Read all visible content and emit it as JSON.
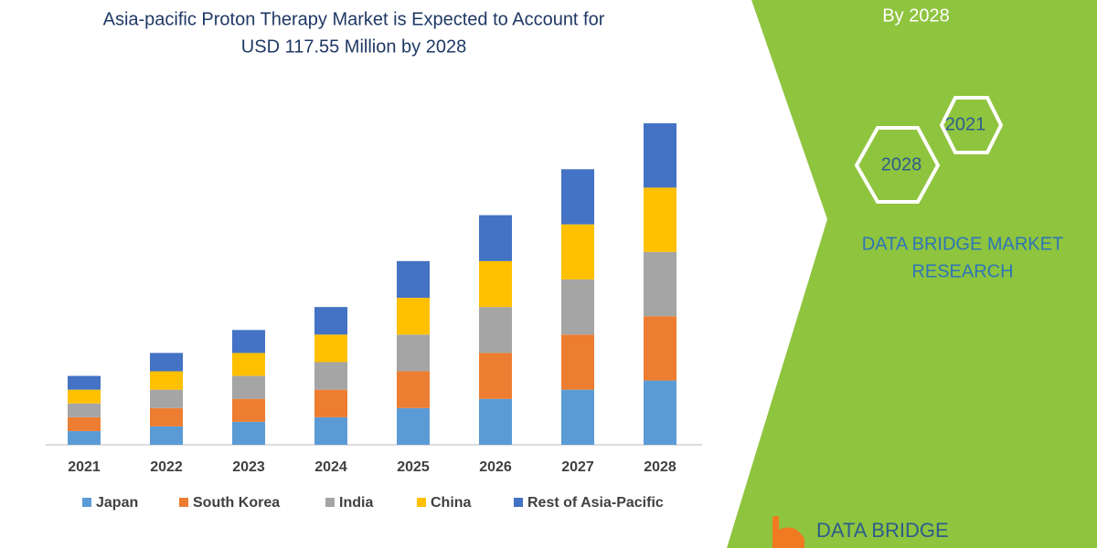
{
  "chart_data": {
    "type": "stacked_bar",
    "title": [
      "Asia-pacific Proton Therapy Market is Expected to Account for",
      "USD 117.55 Million by 2028"
    ],
    "categories": [
      "2021",
      "2022",
      "2023",
      "2024",
      "2025",
      "2026",
      "2027",
      "2028"
    ],
    "series": [
      {
        "name": "Japan",
        "color": "#5b9bd5",
        "values": [
          3,
          4,
          5,
          6,
          8,
          10,
          12,
          14
        ]
      },
      {
        "name": "South Korea",
        "color": "#ed7d31",
        "values": [
          3,
          4,
          5,
          6,
          8,
          10,
          12,
          14
        ]
      },
      {
        "name": "India",
        "color": "#a5a5a5",
        "values": [
          3,
          4,
          5,
          6,
          8,
          10,
          12,
          14
        ]
      },
      {
        "name": "China",
        "color": "#ffc000",
        "values": [
          3,
          4,
          5,
          6,
          8,
          10,
          12,
          14
        ]
      },
      {
        "name": "Rest of Asia-Pacific",
        "color": "#4472c4",
        "values": [
          3,
          4,
          5,
          6,
          8,
          10,
          12,
          14
        ]
      }
    ]
  },
  "panel": {
    "caption": "By 2028",
    "hexagons": [
      "2021",
      "2028"
    ],
    "brand": [
      "DATA BRIDGE MARKET",
      "RESEARCH"
    ],
    "logo": "DATA BRIDGE"
  }
}
